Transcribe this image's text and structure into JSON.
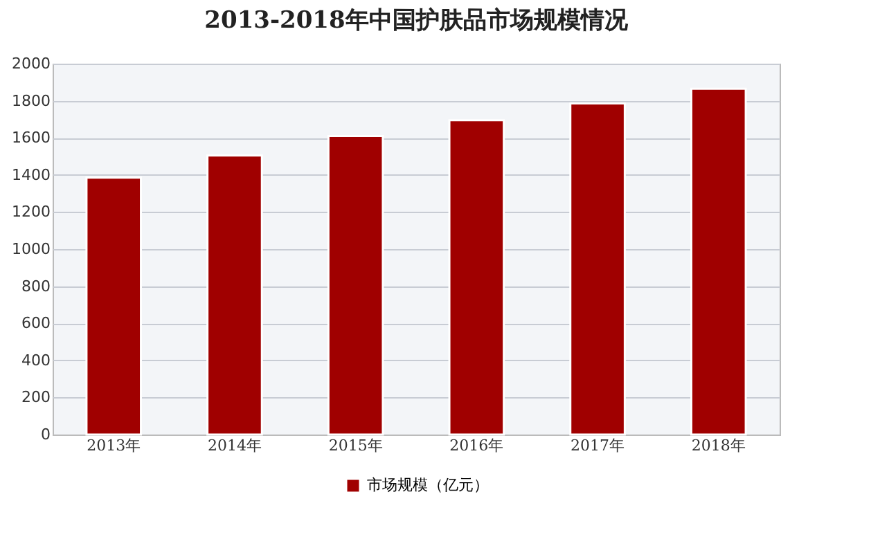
{
  "chart_data": {
    "type": "bar",
    "title": "2013-2018年中国护肤品市场规模情况",
    "categories": [
      "2013年",
      "2014年",
      "2015年",
      "2016年",
      "2017年",
      "2018年"
    ],
    "series": [
      {
        "name": "市场规模（亿元）",
        "color": "#a00000",
        "values": [
          1385,
          1505,
          1610,
          1695,
          1785,
          1865
        ]
      }
    ],
    "ylim": [
      0,
      2000
    ],
    "yticks": [
      0,
      200,
      400,
      600,
      800,
      1000,
      1200,
      1400,
      1600,
      1800,
      2000
    ],
    "grid": "y",
    "legend": "bottom"
  }
}
